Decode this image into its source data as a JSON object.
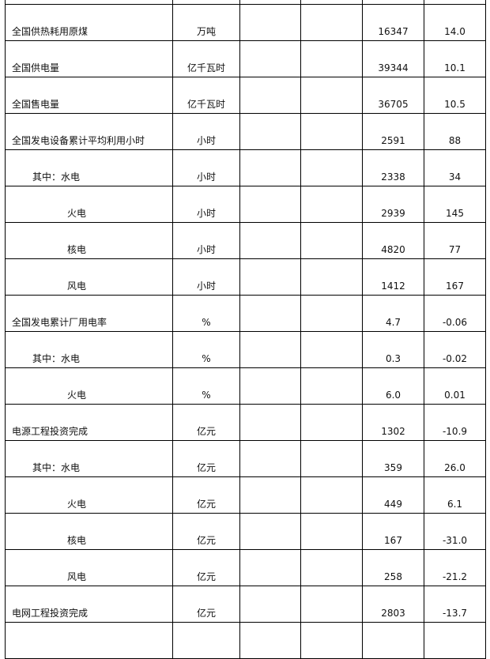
{
  "rows": [
    {
      "name": "",
      "unit": "",
      "value": "",
      "change": "",
      "indent": 0
    },
    {
      "name": "全国供热耗用原煤",
      "unit": "万吨",
      "value": "16347",
      "change": "14.0",
      "indent": 0
    },
    {
      "name": "全国供电量",
      "unit": "亿千瓦时",
      "value": "39344",
      "change": "10.1",
      "indent": 0
    },
    {
      "name": "全国售电量",
      "unit": "亿千瓦时",
      "value": "36705",
      "change": "10.5",
      "indent": 0
    },
    {
      "name": "全国发电设备累计平均利用小时",
      "unit": "小时",
      "value": "2591",
      "change": "88",
      "indent": 0
    },
    {
      "name": "其中：水电",
      "unit": "小时",
      "value": "2338",
      "change": "34",
      "indent": 1
    },
    {
      "name": "火电",
      "unit": "小时",
      "value": "2939",
      "change": "145",
      "indent": 2
    },
    {
      "name": "核电",
      "unit": "小时",
      "value": "4820",
      "change": "77",
      "indent": 2
    },
    {
      "name": "风电",
      "unit": "小时",
      "value": "1412",
      "change": "167",
      "indent": 2
    },
    {
      "name": "全国发电累计厂用电率",
      "unit": "%",
      "value": "4.7",
      "change": "-0.06",
      "indent": 0
    },
    {
      "name": "其中：水电",
      "unit": "%",
      "value": "0.3",
      "change": "-0.02",
      "indent": 1
    },
    {
      "name": "火电",
      "unit": "%",
      "value": "6.0",
      "change": "0.01",
      "indent": 2
    },
    {
      "name": "电源工程投资完成",
      "unit": "亿元",
      "value": "1302",
      "change": "-10.9",
      "indent": 0
    },
    {
      "name": "其中：水电",
      "unit": "亿元",
      "value": "359",
      "change": "26.0",
      "indent": 1
    },
    {
      "name": "火电",
      "unit": "亿元",
      "value": "449",
      "change": "6.1",
      "indent": 2
    },
    {
      "name": "核电",
      "unit": "亿元",
      "value": "167",
      "change": "-31.0",
      "indent": 2
    },
    {
      "name": "风电",
      "unit": "亿元",
      "value": "258",
      "change": "-21.2",
      "indent": 2
    },
    {
      "name": "电网工程投资完成",
      "unit": "亿元",
      "value": "2803",
      "change": "-13.7",
      "indent": 0
    },
    {
      "name": "",
      "unit": "",
      "value": "",
      "change": "",
      "indent": 0
    }
  ]
}
